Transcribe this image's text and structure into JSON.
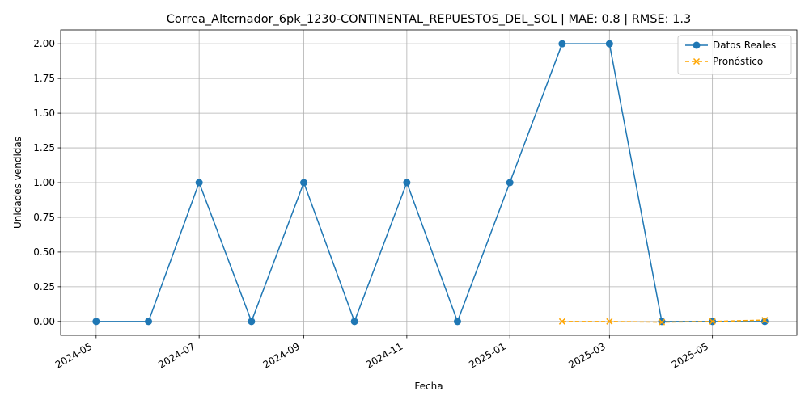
{
  "chart_data": {
    "type": "line",
    "title": "Correa_Alternador_6pk_1230-CONTINENTAL_REPUESTOS_DEL_SOL | MAE: 0.8 | RMSE: 1.3",
    "xlabel": "Fecha",
    "ylabel": "Unidades vendidas",
    "xlim": [
      "2024-04-10",
      "2025-06-20"
    ],
    "ylim": [
      -0.1,
      2.1
    ],
    "x_ticks": [
      "2024-05",
      "2024-07",
      "2024-09",
      "2024-11",
      "2025-01",
      "2025-03",
      "2025-05"
    ],
    "y_ticks": [
      "0.00",
      "0.25",
      "0.50",
      "0.75",
      "1.00",
      "1.25",
      "1.50",
      "1.75",
      "2.00"
    ],
    "grid": true,
    "legend_position": "top-right",
    "series": [
      {
        "name": "Datos Reales",
        "color": "#1f77b4",
        "marker": "circle",
        "linestyle": "solid",
        "x": [
          "2024-05-01",
          "2024-06-01",
          "2024-07-01",
          "2024-08-01",
          "2024-09-01",
          "2024-10-01",
          "2024-11-01",
          "2024-12-01",
          "2025-01-01",
          "2025-02-01",
          "2025-03-01",
          "2025-04-01",
          "2025-05-01",
          "2025-06-01"
        ],
        "values": [
          0,
          0,
          1,
          0,
          1,
          0,
          1,
          0,
          1,
          2,
          2,
          0,
          0,
          0
        ]
      },
      {
        "name": "Pronóstico",
        "color": "#ffa500",
        "marker": "x",
        "linestyle": "dashed",
        "x": [
          "2025-02-01",
          "2025-03-01",
          "2025-04-01",
          "2025-05-01",
          "2025-06-01"
        ],
        "values": [
          0.0,
          0.0,
          -0.005,
          0.0,
          0.01
        ]
      }
    ]
  }
}
